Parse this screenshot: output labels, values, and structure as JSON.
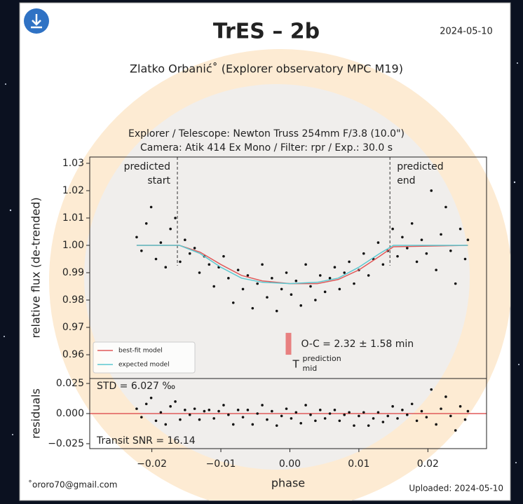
{
  "header": {
    "title": "TrES – 2b",
    "date": "2024-05-10",
    "author": "Zlatko Orbanić˚ (Explorer observatory MPC M19)",
    "setup": "Explorer / Telescope: Newton Truss 254mm F/3.8 (10.0\")",
    "camera": "Camera: Atik 414 Ex Mono / Filter: rpr / Exp.: 30.0 s"
  },
  "footer": {
    "email": "˚ororo70@gmail.com",
    "uploaded": "Uploaded: 2024-05-10"
  },
  "chart_data": [
    {
      "type": "scatter",
      "ylabel": "relative flux (de-trended)",
      "xlim": [
        -0.029,
        0.0285
      ],
      "ylim": [
        0.9513,
        1.0323
      ],
      "yticks": [
        1.03,
        1.02,
        1.01,
        {
          "value": 1.0,
          "label": "1.00"
        },
        0.99,
        0.98,
        0.97,
        0.96
      ],
      "x": [
        -0.0222,
        -0.0215,
        -0.0208,
        -0.0201,
        -0.0194,
        -0.0187,
        -0.018,
        -0.0173,
        -0.0166,
        -0.0159,
        -0.0152,
        -0.0145,
        -0.0138,
        -0.0131,
        -0.0124,
        -0.0117,
        -0.011,
        -0.0103,
        -0.0096,
        -0.0089,
        -0.0082,
        -0.0075,
        -0.0068,
        -0.0061,
        -0.0054,
        -0.0047,
        -0.004,
        -0.0033,
        -0.0026,
        -0.0019,
        -0.0012,
        -0.0005,
        0.0002,
        0.0009,
        0.0016,
        0.0023,
        0.003,
        0.0037,
        0.0044,
        0.0051,
        0.0058,
        0.0065,
        0.0072,
        0.0079,
        0.0086,
        0.0093,
        0.01,
        0.0107,
        0.0114,
        0.0121,
        0.0128,
        0.0135,
        0.0142,
        0.0149,
        0.0156,
        0.0163,
        0.017,
        0.0177,
        0.0184,
        0.0191,
        0.0198,
        0.0205,
        0.0212,
        0.0219,
        0.0226,
        0.0233,
        0.024,
        0.0247,
        0.0254,
        0.0258
      ],
      "values": [
        1.003,
        0.998,
        1.008,
        1.014,
        0.995,
        1.001,
        0.992,
        1.006,
        1.01,
        0.994,
        1.002,
        0.997,
        0.999,
        0.99,
        0.996,
        0.993,
        0.985,
        0.992,
        0.996,
        0.988,
        0.979,
        0.991,
        0.984,
        0.989,
        0.977,
        0.986,
        0.993,
        0.981,
        0.988,
        0.976,
        0.984,
        0.99,
        0.982,
        0.987,
        0.978,
        0.993,
        0.985,
        0.98,
        0.989,
        0.983,
        0.988,
        0.992,
        0.984,
        0.99,
        0.994,
        0.986,
        0.991,
        0.997,
        0.989,
        0.995,
        1.001,
        0.993,
        0.998,
        1.006,
        0.996,
        1.003,
        0.999,
        1.008,
        0.994,
        1.002,
        0.997,
        1.02,
        0.991,
        1.004,
        1.014,
        0.998,
        0.986,
        1.006,
        0.995,
        1.002
      ],
      "color": "#111111",
      "series": [
        {
          "name": "best-fit model",
          "color": "#e05a5a",
          "x": [
            -0.0222,
            -0.016,
            -0.013,
            -0.01,
            -0.007,
            -0.004,
            0.0,
            0.004,
            0.007,
            0.01,
            0.013,
            0.015,
            0.0258
          ],
          "values": [
            1.0,
            1.0,
            0.9975,
            0.993,
            0.989,
            0.987,
            0.986,
            0.986,
            0.9875,
            0.991,
            0.996,
            0.9995,
            1.0
          ]
        },
        {
          "name": "expected model",
          "color": "#5cc8d0",
          "x": [
            -0.0222,
            -0.016,
            -0.013,
            -0.01,
            -0.007,
            -0.004,
            0.0,
            0.004,
            0.007,
            0.01,
            0.013,
            0.015,
            0.0258
          ],
          "values": [
            1.0,
            1.0,
            0.997,
            0.992,
            0.988,
            0.9865,
            0.986,
            0.9865,
            0.988,
            0.992,
            0.997,
            1.0,
            1.0
          ]
        }
      ],
      "legend": "lower left",
      "vlines": [
        {
          "x": -0.0163,
          "label": [
            "predicted",
            "start"
          ]
        },
        {
          "x": 0.0145,
          "label": [
            "predicted",
            "end"
          ]
        }
      ],
      "oc_marker": {
        "x": -0.0002,
        "y": [
          0.96,
          0.968
        ],
        "color": "#e88080"
      },
      "oc_text": "O-C = 2.32 ± 1.58 min",
      "tmid": "T",
      "tmid_sup": "prediction",
      "tmid_sub": "mid"
    },
    {
      "type": "scatter",
      "ylabel": "residuals",
      "xlabel": "phase",
      "xlim": [
        -0.029,
        0.0285
      ],
      "ylim": [
        -0.0291,
        0.0291
      ],
      "xticks": [
        {
          "value": -0.02,
          "label": "−0.02"
        },
        {
          "value": -0.01,
          "label": "−0.01"
        },
        {
          "value": 0,
          "label": "0.00"
        },
        0.01,
        0.02
      ],
      "yticks": [
        0.025,
        {
          "value": 0,
          "label": "0.000"
        },
        {
          "value": -0.025,
          "label": "−0.025"
        }
      ],
      "x": [
        -0.0222,
        -0.0215,
        -0.0208,
        -0.0201,
        -0.0194,
        -0.0187,
        -0.018,
        -0.0173,
        -0.0166,
        -0.0159,
        -0.0152,
        -0.0145,
        -0.0138,
        -0.0131,
        -0.0124,
        -0.0117,
        -0.011,
        -0.0103,
        -0.0096,
        -0.0089,
        -0.0082,
        -0.0075,
        -0.0068,
        -0.0061,
        -0.0054,
        -0.0047,
        -0.004,
        -0.0033,
        -0.0026,
        -0.0019,
        -0.0012,
        -0.0005,
        0.0002,
        0.0009,
        0.0016,
        0.0023,
        0.003,
        0.0037,
        0.0044,
        0.0051,
        0.0058,
        0.0065,
        0.0072,
        0.0079,
        0.0086,
        0.0093,
        0.01,
        0.0107,
        0.0114,
        0.0121,
        0.0128,
        0.0135,
        0.0142,
        0.0149,
        0.0156,
        0.0163,
        0.017,
        0.0177,
        0.0184,
        0.0191,
        0.0198,
        0.0205,
        0.0212,
        0.0219,
        0.0226,
        0.0233,
        0.024,
        0.0247,
        0.0254,
        0.0258
      ],
      "values": [
        0.004,
        -0.003,
        0.008,
        0.013,
        -0.006,
        0.001,
        -0.009,
        0.006,
        0.01,
        -0.005,
        0.003,
        -0.001,
        0.004,
        -0.005,
        0.002,
        0.003,
        -0.004,
        0.002,
        0.007,
        -0.001,
        -0.009,
        0.003,
        -0.003,
        0.003,
        -0.009,
        0.0,
        0.007,
        -0.005,
        0.002,
        -0.01,
        -0.002,
        0.004,
        -0.004,
        0.001,
        -0.008,
        0.007,
        -0.001,
        -0.006,
        0.003,
        -0.004,
        0.0,
        0.003,
        -0.006,
        -0.001,
        0.001,
        -0.01,
        -0.002,
        0.001,
        -0.01,
        -0.004,
        0.001,
        -0.007,
        -0.002,
        0.006,
        -0.004,
        0.003,
        -0.001,
        0.008,
        -0.006,
        0.002,
        -0.003,
        0.02,
        -0.009,
        0.004,
        0.014,
        -0.002,
        -0.014,
        0.006,
        -0.005,
        0.002
      ],
      "color": "#111111",
      "hlines": [
        {
          "y": 0,
          "color": "#e05a5a"
        }
      ],
      "std_text": "STD = 6.027 ‰",
      "snr_text": "Transit SNR = 16.14"
    }
  ]
}
